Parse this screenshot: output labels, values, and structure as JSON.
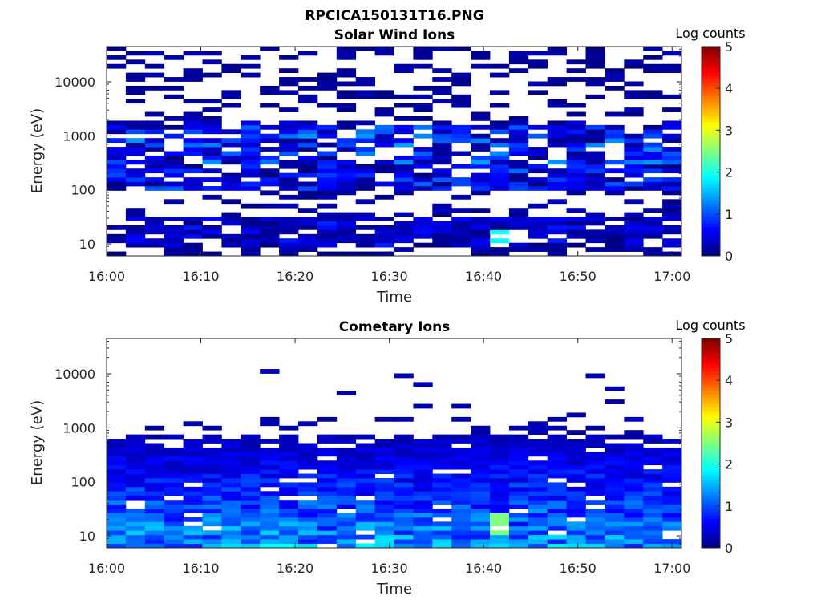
{
  "figure_title": "RPCICA150131T16.PNG",
  "colors": {
    "background": "#ffffff",
    "axes": "#262626",
    "empty_bin": "#ffffff"
  },
  "chart_data": [
    {
      "type": "heatmap",
      "title": "Solar Wind Ions",
      "xlabel": "Time",
      "ylabel": "Energy (eV)",
      "x_ticks": [
        "16:00",
        "16:10",
        "16:20",
        "16:30",
        "16:40",
        "16:50",
        "17:00"
      ],
      "x_range_minutes": [
        0,
        61
      ],
      "y_scale": "log",
      "y_ticks": [
        10,
        100,
        1000,
        10000
      ],
      "y_tick_labels": [
        "10",
        "100",
        "1000",
        "10000"
      ],
      "y_range": [
        6,
        45000
      ],
      "colorbar": {
        "label": "Log counts",
        "colormap": "jet",
        "range": [
          0,
          5
        ],
        "ticks": [
          "0",
          "1",
          "2",
          "3",
          "4",
          "5"
        ]
      },
      "time_bins": 30,
      "energy_bins": 48,
      "note": "Sparse counts at high energies (>2 keV); dense band 100-1500 eV and 10-30 eV; log counts mostly 0-1.8, peak ~2 near 16:41 at ~15 eV",
      "profile": {
        "high_band_fill": 0.35,
        "mid_band": [
          100,
          1500
        ],
        "low_band": [
          10,
          30
        ],
        "max_log_counts": 2.0
      }
    },
    {
      "type": "heatmap",
      "title": "Cometary Ions",
      "xlabel": "Time",
      "ylabel": "Energy (eV)",
      "x_ticks": [
        "16:00",
        "16:10",
        "16:20",
        "16:30",
        "16:40",
        "16:50",
        "17:00"
      ],
      "x_range_minutes": [
        0,
        61
      ],
      "y_scale": "log",
      "y_ticks": [
        10,
        100,
        1000,
        10000
      ],
      "y_tick_labels": [
        "10",
        "100",
        "1000",
        "10000"
      ],
      "y_range": [
        6,
        45000
      ],
      "colorbar": {
        "label": "Log counts",
        "colormap": "jet",
        "range": [
          0,
          5
        ],
        "ticks": [
          "0",
          "1",
          "2",
          "3",
          "4",
          "5"
        ]
      },
      "time_bins": 30,
      "energy_bins": 48,
      "note": "Dense counts below ~600 eV, increasing toward low energies; log counts up to ~2.7 near 16:41 at ~15 eV",
      "profile": {
        "dense_below": 600,
        "max_log_counts": 2.7
      }
    }
  ]
}
